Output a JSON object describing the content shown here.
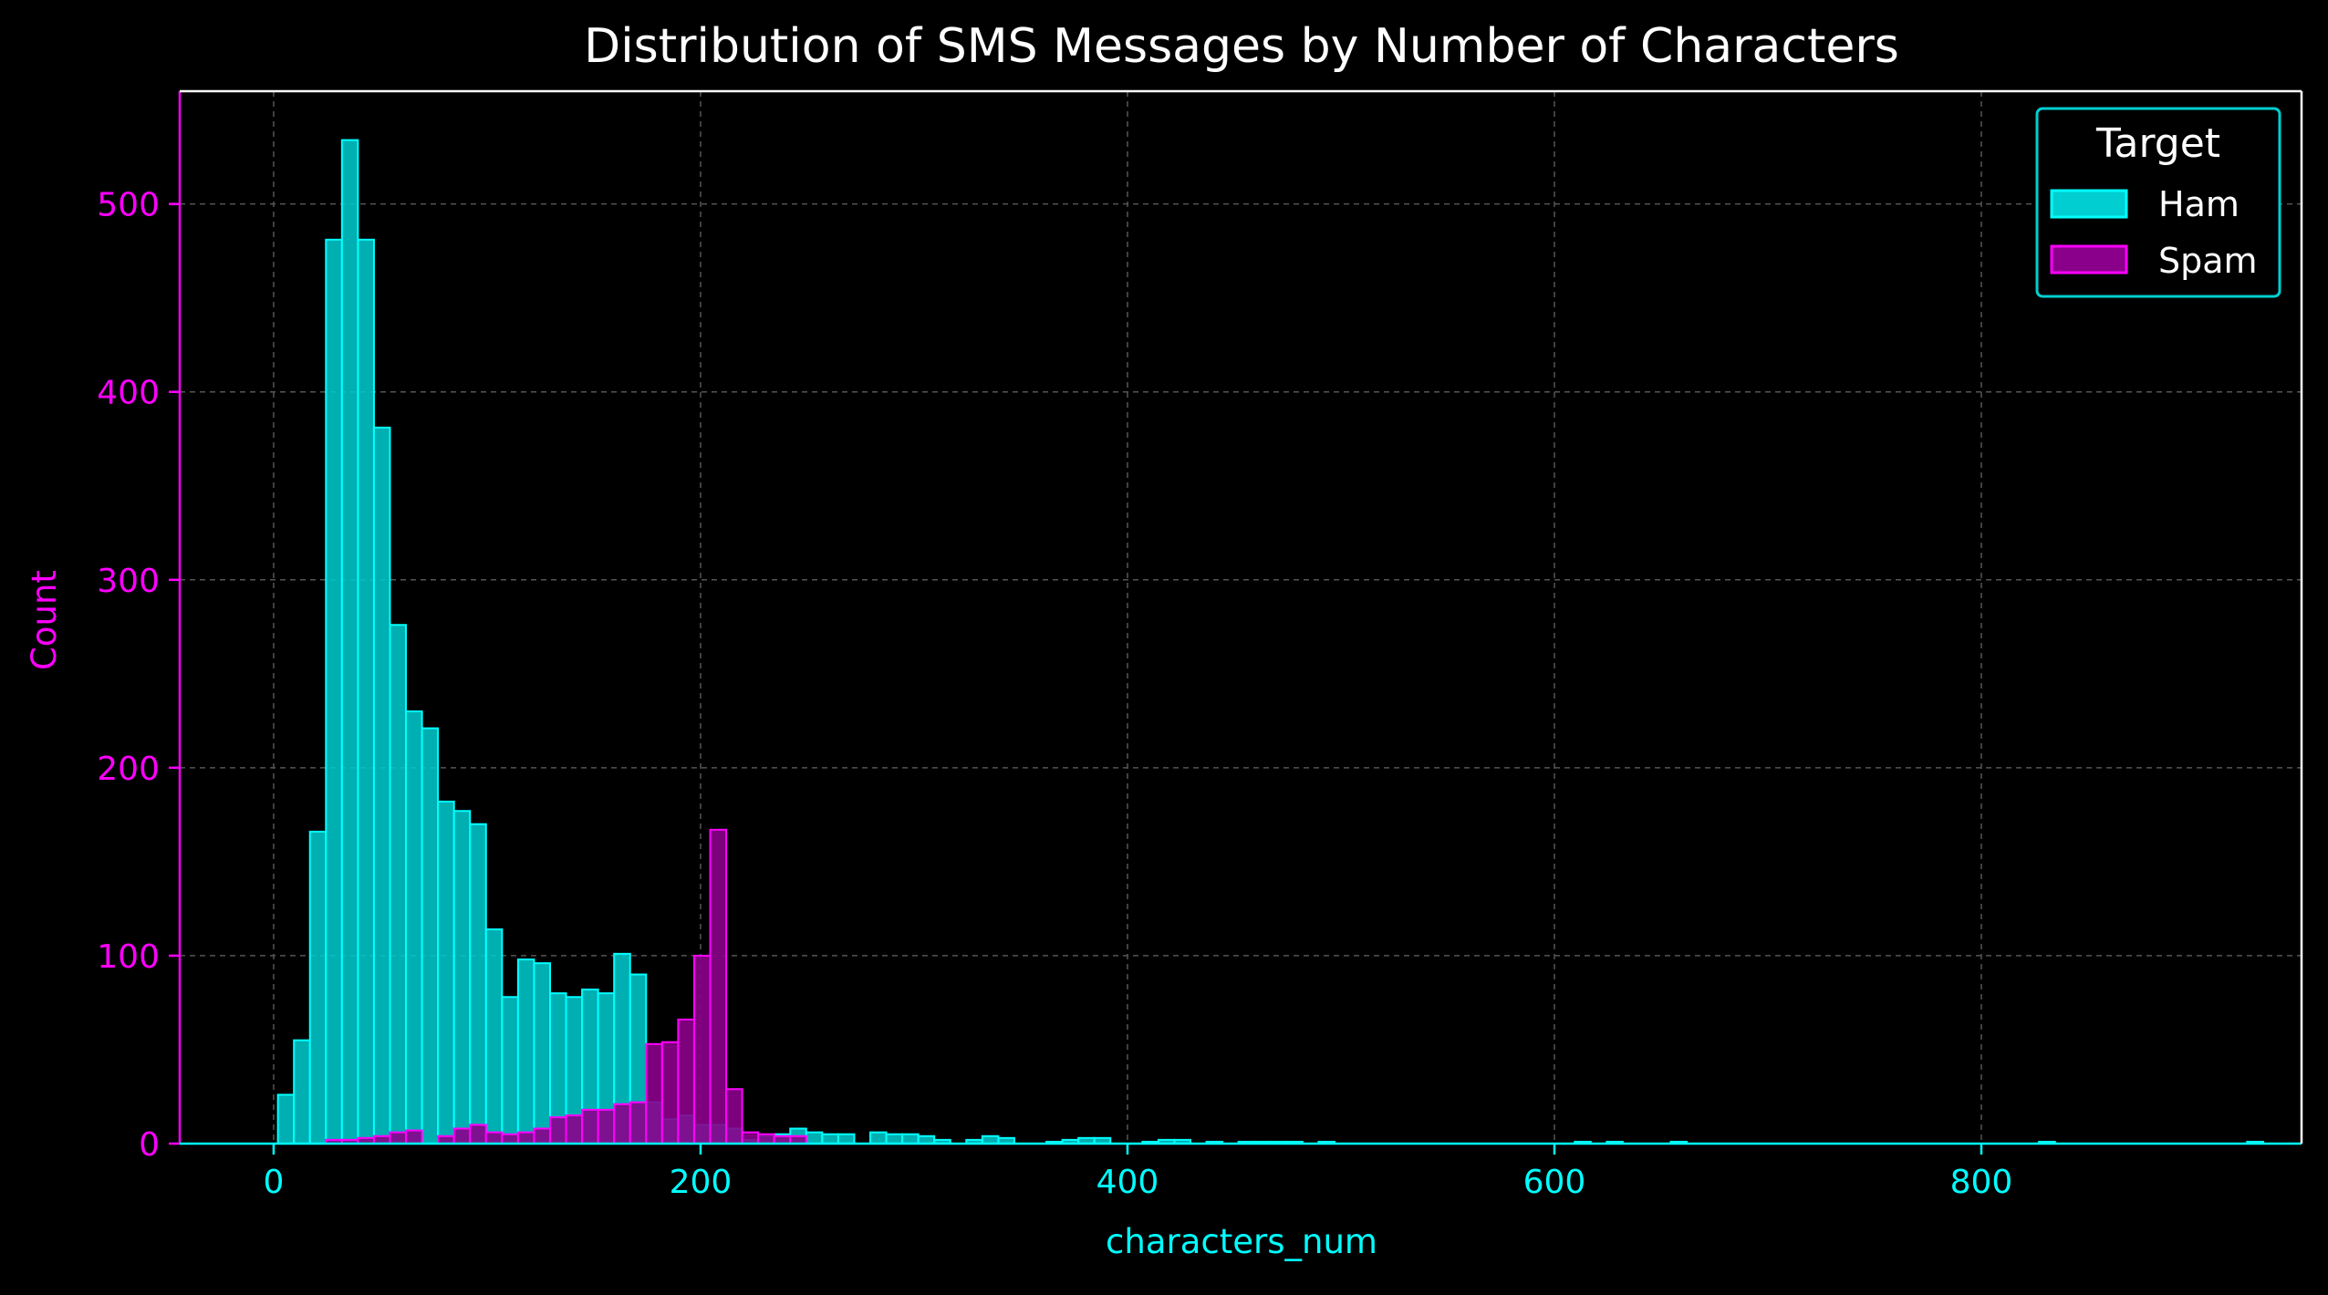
{
  "chart_data": {
    "type": "bar",
    "title": "Distribution of SMS Messages by Number of Characters",
    "xlabel": "characters_num",
    "ylabel": "Count",
    "xlim": [
      -44,
      950
    ],
    "ylim": [
      0,
      560
    ],
    "x_ticks": [
      0,
      200,
      400,
      600,
      800
    ],
    "y_ticks": [
      0,
      100,
      200,
      300,
      400,
      500
    ],
    "grid": true,
    "bin_width": 7.5,
    "legend": {
      "title": "Target",
      "placement": "top-right",
      "entries": [
        "Ham",
        "Spam"
      ]
    },
    "colors": {
      "background": "#000000",
      "ham_fill": "#00CED1",
      "ham_edge": "#00FFFF",
      "spam_fill": "#8B008B",
      "spam_edge": "#FF00FF",
      "axis_x": "#00FFFF",
      "axis_y": "#FF00FF",
      "title": "#FFFFFF",
      "grid": "#555555"
    },
    "series": [
      {
        "name": "Ham",
        "bins": [
          [
            2,
            26
          ],
          [
            9.5,
            55
          ],
          [
            17,
            166
          ],
          [
            24.5,
            481
          ],
          [
            32,
            534
          ],
          [
            39.5,
            481
          ],
          [
            47,
            381
          ],
          [
            54.5,
            276
          ],
          [
            62,
            230
          ],
          [
            69.5,
            221
          ],
          [
            77,
            182
          ],
          [
            84.5,
            177
          ],
          [
            92,
            170
          ],
          [
            99.5,
            114
          ],
          [
            107,
            78
          ],
          [
            114.5,
            98
          ],
          [
            122,
            96
          ],
          [
            129.5,
            80
          ],
          [
            137,
            78
          ],
          [
            144.5,
            82
          ],
          [
            152,
            80
          ],
          [
            159.5,
            101
          ],
          [
            167,
            90
          ],
          [
            174.5,
            22
          ],
          [
            182,
            13
          ],
          [
            189.5,
            15
          ],
          [
            197,
            10
          ],
          [
            204.5,
            10
          ],
          [
            212,
            8
          ],
          [
            219.5,
            2
          ],
          [
            227,
            4
          ],
          [
            234.5,
            5
          ],
          [
            242,
            8
          ],
          [
            249.5,
            6
          ],
          [
            257,
            5
          ],
          [
            264.5,
            5
          ],
          [
            279.5,
            6
          ],
          [
            287,
            5
          ],
          [
            294.5,
            5
          ],
          [
            302,
            4
          ],
          [
            309.5,
            2
          ],
          [
            324.5,
            2
          ],
          [
            332,
            4
          ],
          [
            339.5,
            3
          ],
          [
            362,
            1
          ],
          [
            369.5,
            2
          ],
          [
            377,
            3
          ],
          [
            384.5,
            3
          ],
          [
            407,
            1
          ],
          [
            414.5,
            2
          ],
          [
            422,
            2
          ],
          [
            437,
            1
          ],
          [
            452,
            1
          ],
          [
            459.5,
            1
          ],
          [
            467,
            1
          ],
          [
            474.5,
            1
          ],
          [
            489.5,
            1
          ],
          [
            609.5,
            1
          ],
          [
            624.5,
            1
          ],
          [
            654.5,
            1
          ],
          [
            827,
            1
          ],
          [
            924.5,
            1
          ]
        ]
      },
      {
        "name": "Spam",
        "bins": [
          [
            24.5,
            2
          ],
          [
            32,
            2
          ],
          [
            39.5,
            3
          ],
          [
            47,
            4
          ],
          [
            54.5,
            6
          ],
          [
            62,
            7
          ],
          [
            77,
            4
          ],
          [
            84.5,
            8
          ],
          [
            92,
            10
          ],
          [
            99.5,
            6
          ],
          [
            107,
            5
          ],
          [
            114.5,
            6
          ],
          [
            122,
            8
          ],
          [
            129.5,
            14
          ],
          [
            137,
            15
          ],
          [
            144.5,
            18
          ],
          [
            152,
            18
          ],
          [
            159.5,
            21
          ],
          [
            167,
            22
          ],
          [
            174.5,
            53
          ],
          [
            182,
            54
          ],
          [
            189.5,
            66
          ],
          [
            197,
            100
          ],
          [
            204.5,
            167
          ],
          [
            212,
            29
          ],
          [
            219.5,
            6
          ],
          [
            227,
            5
          ],
          [
            234.5,
            4
          ],
          [
            242,
            4
          ]
        ]
      }
    ]
  }
}
